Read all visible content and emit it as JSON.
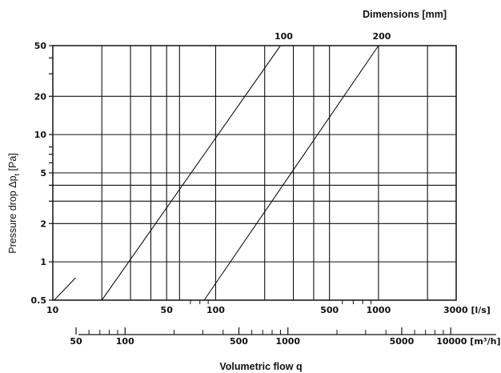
{
  "chart_data": {
    "type": "line",
    "title": "Dimensions [mm]",
    "ylabel_main": "Pressure drop Δp",
    "ylabel_sub": "t",
    "ylabel_unit": "[Pa]",
    "xlabel": "Volumetric flow q",
    "x_scale": "log",
    "y_scale": "log",
    "xlim": [
      10,
      3000
    ],
    "ylim": [
      0.5,
      50
    ],
    "grid": true,
    "x_ticks": [
      {
        "value": 10,
        "label": "10"
      },
      {
        "value": 50,
        "label": "50"
      },
      {
        "value": 100,
        "label": "100"
      },
      {
        "value": 500,
        "label": "500"
      },
      {
        "value": 1000,
        "label": "1000"
      },
      {
        "value": 3000,
        "label": "3000 [l/s]"
      }
    ],
    "x_ticks_secondary": [
      {
        "value": 50,
        "label": "50"
      },
      {
        "value": 100,
        "label": "100"
      },
      {
        "value": 500,
        "label": "500"
      },
      {
        "value": 1000,
        "label": "1000"
      },
      {
        "value": 5000,
        "label": "5000"
      },
      {
        "value": 10000,
        "label": "10000 [m³/h]"
      }
    ],
    "y_ticks": [
      {
        "value": 0.5,
        "label": "0.5"
      },
      {
        "value": 1,
        "label": "1"
      },
      {
        "value": 2,
        "label": "2"
      },
      {
        "value": 5,
        "label": "5"
      },
      {
        "value": 10,
        "label": "10"
      },
      {
        "value": 20,
        "label": "20"
      },
      {
        "value": 50,
        "label": "50"
      }
    ],
    "series": [
      {
        "name": "100",
        "points": [
          [
            20,
            0.5
          ],
          [
            250,
            50
          ]
        ]
      },
      {
        "name": "200",
        "points": [
          [
            85,
            0.5
          ],
          [
            1000,
            50
          ]
        ]
      }
    ]
  }
}
